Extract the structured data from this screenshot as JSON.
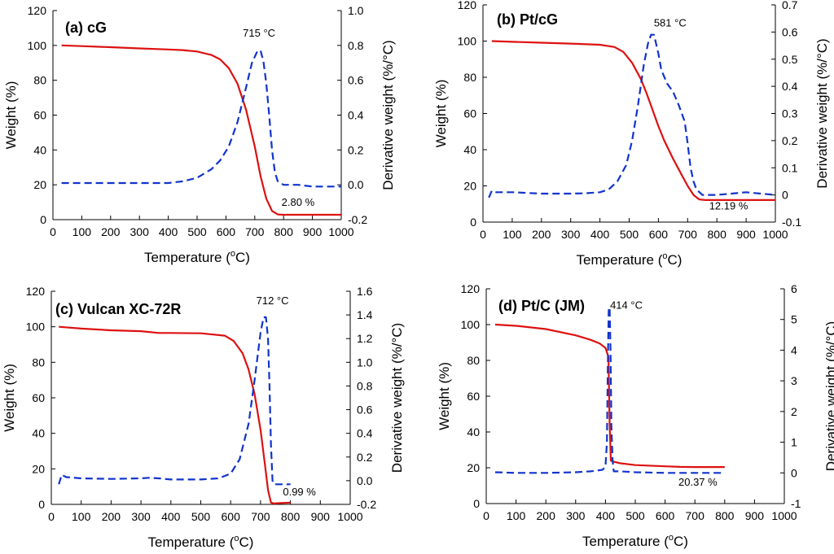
{
  "figure": {
    "colors": {
      "weight": "#dd1111",
      "derivative": "#1133cc",
      "axis": "#000000"
    }
  },
  "chart_data": [
    {
      "type": "line",
      "panel_label": "(a) cG",
      "xlabel": "Temperature (",
      "xlabel_unit": "C)",
      "xlabel_sup": "o",
      "ylabel": "Weight (%)",
      "y2label": "Derivative weight (%/°C)",
      "xlim": [
        0,
        1000
      ],
      "ylim": [
        0,
        120
      ],
      "y2lim": [
        -0.2,
        1.0
      ],
      "xticks": [
        "0",
        "100",
        "200",
        "300",
        "400",
        "500",
        "600",
        "700",
        "800",
        "900",
        "1000"
      ],
      "yticks": [
        "0",
        "20",
        "40",
        "60",
        "80",
        "100",
        "120"
      ],
      "y2ticks": [
        "-0.2",
        "0.0",
        "0.2",
        "0.4",
        "0.6",
        "0.8",
        "1.0"
      ],
      "annotations": [
        {
          "id": "peak",
          "text": "715 °C",
          "x": 715,
          "y2": 0.85
        },
        {
          "id": "residue",
          "text": "2.80 %",
          "x": 850,
          "y": 8
        }
      ],
      "series": [
        {
          "name": "Weight",
          "axis": "left",
          "style": "solid",
          "x": [
            30,
            100,
            200,
            300,
            400,
            450,
            500,
            550,
            580,
            610,
            640,
            670,
            700,
            720,
            740,
            760,
            780,
            800,
            900,
            1000
          ],
          "values": [
            100,
            99.6,
            99,
            98.3,
            97.7,
            97.3,
            96.5,
            94.5,
            92,
            87,
            78,
            63,
            42,
            25,
            12,
            5,
            3,
            2.8,
            2.8,
            2.8
          ]
        },
        {
          "name": "Derivative weight",
          "axis": "right",
          "style": "dashed",
          "x": [
            30,
            100,
            200,
            300,
            400,
            450,
            500,
            550,
            580,
            610,
            640,
            670,
            690,
            710,
            720,
            730,
            740,
            750,
            760,
            770,
            780,
            800,
            850,
            900,
            950,
            1000
          ],
          "values": [
            0.01,
            0.01,
            0.01,
            0.01,
            0.01,
            0.02,
            0.04,
            0.09,
            0.14,
            0.22,
            0.36,
            0.56,
            0.7,
            0.77,
            0.77,
            0.71,
            0.58,
            0.4,
            0.2,
            0.07,
            0.02,
            0.0,
            0.0,
            -0.01,
            -0.01,
            -0.01
          ]
        }
      ]
    },
    {
      "type": "line",
      "panel_label": "(b) Pt/cG",
      "xlabel": "Temperature (",
      "xlabel_unit": "C)",
      "xlabel_sup": "o",
      "ylabel": "Weight (%)",
      "y2label": "Derivative weight (%/°C)",
      "xlim": [
        0,
        1000
      ],
      "ylim": [
        0,
        120
      ],
      "y2lim": [
        -0.1,
        0.7
      ],
      "xticks": [
        "0",
        "100",
        "200",
        "300",
        "400",
        "500",
        "600",
        "700",
        "800",
        "900",
        "1000"
      ],
      "yticks": [
        "0",
        "20",
        "40",
        "60",
        "80",
        "100",
        "120"
      ],
      "y2ticks": [
        "-0.1",
        "0",
        "0.1",
        "0.2",
        "0.3",
        "0.4",
        "0.5",
        "0.6",
        "0.7"
      ],
      "annotations": [
        {
          "id": "peak",
          "text": "581 °C",
          "x": 640,
          "y2": 0.62
        },
        {
          "id": "residue",
          "text": "12.19 %",
          "x": 840,
          "y": 7
        }
      ],
      "series": [
        {
          "name": "Weight",
          "axis": "left",
          "style": "solid",
          "x": [
            30,
            100,
            200,
            300,
            400,
            450,
            480,
            510,
            540,
            560,
            580,
            600,
            620,
            650,
            680,
            700,
            720,
            740,
            760,
            800,
            900,
            1000
          ],
          "values": [
            100,
            99.6,
            99.1,
            98.6,
            98,
            96.7,
            94,
            88,
            79,
            71,
            62,
            53,
            45,
            35,
            26,
            20,
            15,
            12.5,
            12.2,
            12.2,
            12.2,
            12.2
          ]
        },
        {
          "name": "Derivative weight",
          "axis": "right",
          "style": "dashed",
          "x": [
            20,
            30,
            40,
            60,
            100,
            200,
            300,
            350,
            400,
            430,
            460,
            490,
            510,
            530,
            550,
            565,
            575,
            585,
            600,
            610,
            630,
            650,
            670,
            690,
            700,
            710,
            720,
            730,
            750,
            770,
            800,
            850,
            900,
            950,
            1000
          ],
          "values": [
            -0.01,
            0.015,
            0.01,
            0.01,
            0.01,
            0.005,
            0.005,
            0.006,
            0.01,
            0.02,
            0.05,
            0.11,
            0.2,
            0.33,
            0.48,
            0.56,
            0.59,
            0.59,
            0.52,
            0.46,
            0.41,
            0.38,
            0.33,
            0.27,
            0.19,
            0.1,
            0.05,
            0.02,
            0.0,
            0.0,
            0.0,
            0.005,
            0.01,
            0.005,
            0.0
          ]
        }
      ]
    },
    {
      "type": "line",
      "panel_label": "(c) Vulcan XC-72R",
      "xlabel": "Temperature (",
      "xlabel_unit": "C)",
      "xlabel_sup": "o",
      "ylabel": "Weight (%)",
      "y2label": "Derivative weight (%/°C)",
      "xlim": [
        0,
        1000
      ],
      "ylim": [
        0,
        120
      ],
      "y2lim": [
        -0.2,
        1.6
      ],
      "xticks": [
        "0",
        "100",
        "200",
        "300",
        "400",
        "500",
        "600",
        "700",
        "800",
        "900",
        "1000"
      ],
      "yticks": [
        "0",
        "20",
        "40",
        "60",
        "80",
        "100",
        "120"
      ],
      "y2ticks": [
        "-0.2",
        "0.0",
        "0.2",
        "0.4",
        "0.6",
        "0.8",
        "1.0",
        "1.2",
        "1.4",
        "1.6"
      ],
      "annotations": [
        {
          "id": "peak",
          "text": "712 °C",
          "x": 740,
          "y2": 1.49
        },
        {
          "id": "residue",
          "text": "0.99 %",
          "x": 830,
          "y": 5
        }
      ],
      "series": [
        {
          "name": "Weight",
          "axis": "left",
          "style": "solid",
          "x": [
            25,
            100,
            200,
            300,
            360,
            400,
            500,
            580,
            610,
            640,
            660,
            680,
            700,
            715,
            725,
            735,
            745,
            760,
            800
          ],
          "values": [
            100,
            99,
            98,
            97.5,
            96.5,
            96.5,
            96.3,
            95,
            92,
            85,
            76,
            62,
            42,
            22,
            8,
            1,
            0.5,
            0.7,
            1
          ]
        },
        {
          "name": "Derivative weight",
          "axis": "right",
          "style": "dashed",
          "x": [
            25,
            35,
            50,
            100,
            200,
            300,
            330,
            360,
            400,
            500,
            560,
            600,
            630,
            660,
            680,
            700,
            710,
            718,
            725,
            730,
            735,
            740,
            745,
            780,
            800
          ],
          "values": [
            -0.03,
            0.05,
            0.03,
            0.02,
            0.015,
            0.02,
            0.025,
            0.02,
            0.01,
            0.01,
            0.02,
            0.06,
            0.18,
            0.48,
            0.85,
            1.25,
            1.38,
            1.38,
            1.2,
            0.8,
            0.3,
            0.0,
            -0.03,
            -0.03,
            -0.03
          ]
        }
      ]
    },
    {
      "type": "line",
      "panel_label": "(d) Pt/C (JM)",
      "xlabel": "Temperature (",
      "xlabel_unit": "C)",
      "xlabel_sup": "o",
      "ylabel": "Weight (%)",
      "y2label": "Derivative weight (%/°C)",
      "xlim": [
        0,
        1000
      ],
      "ylim": [
        0,
        120
      ],
      "y2lim": [
        -1,
        6
      ],
      "xticks": [
        "0",
        "100",
        "200",
        "300",
        "400",
        "500",
        "600",
        "700",
        "800",
        "900",
        "1000"
      ],
      "yticks": [
        "0",
        "20",
        "40",
        "60",
        "80",
        "100",
        "120"
      ],
      "y2ticks": [
        "-1",
        "0",
        "1",
        "2",
        "3",
        "4",
        "5",
        "6"
      ],
      "annotations": [
        {
          "id": "peak",
          "text": "414 °C",
          "x": 470,
          "y2": 5.35
        },
        {
          "id": "residue",
          "text": "20.37 %",
          "x": 710,
          "y": 10
        }
      ],
      "series": [
        {
          "name": "Weight",
          "axis": "left",
          "style": "solid",
          "x": [
            30,
            100,
            200,
            300,
            350,
            380,
            400,
            410,
            414,
            418,
            425,
            450,
            500,
            600,
            650,
            700,
            800
          ],
          "values": [
            100,
            99.3,
            97.5,
            94,
            91.5,
            89.5,
            87,
            82,
            45,
            24,
            23.5,
            22.5,
            21.5,
            20.8,
            20.5,
            20.4,
            20.4
          ]
        },
        {
          "name": "Derivative weight",
          "axis": "right",
          "style": "dashed",
          "x": [
            30,
            100,
            200,
            300,
            350,
            390,
            400,
            405,
            408,
            411,
            414,
            417,
            420,
            424,
            428,
            450,
            500,
            600,
            700,
            800
          ],
          "values": [
            0.02,
            0.0,
            0.0,
            0.02,
            0.05,
            0.1,
            0.2,
            1.0,
            3.5,
            5.3,
            5.4,
            4.0,
            1.5,
            0.4,
            0.05,
            0.05,
            0.02,
            0.0,
            0.0,
            0.0
          ]
        }
      ]
    }
  ]
}
